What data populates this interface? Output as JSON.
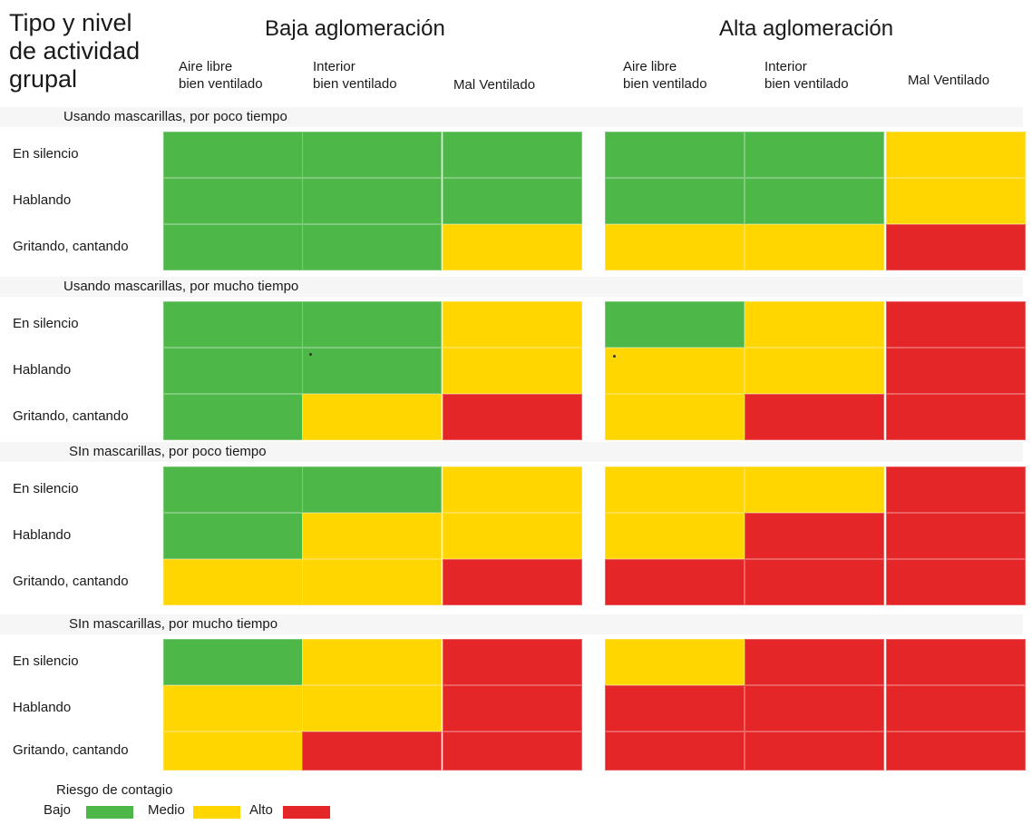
{
  "header": {
    "title": "Tipo y nivel\nde actividad\ngrupal",
    "groups": [
      "Baja aglomeración",
      "Alta aglomeración"
    ],
    "columns": [
      "Aire libre\nbien ventilado",
      "Interior\nbien ventilado",
      "Mal Ventilado",
      "Aire libre\nbien ventilado",
      "Interior\nbien ventilado",
      "Mal Ventilado"
    ]
  },
  "legend": {
    "title": "Riesgo de contagio",
    "items": [
      {
        "label": "Bajo",
        "color": "#4db848"
      },
      {
        "label": "Medio",
        "color": "#ffd600"
      },
      {
        "label": "Alto",
        "color": "#e52628"
      }
    ]
  },
  "chart_data": {
    "type": "heatmap",
    "title": "",
    "column_groups": [
      {
        "name": "Baja aglomeración",
        "columns": [
          "Aire libre\nbien ventilado",
          "Interior\nbien ventilado",
          "Mal Ventilado"
        ]
      },
      {
        "name": "Alta aglomeración",
        "columns": [
          "Aire libre\nbien ventilado",
          "Interior\nbien ventilado",
          "Mal Ventilado"
        ]
      }
    ],
    "levels": [
      "Bajo",
      "Medio",
      "Alto"
    ],
    "sections": [
      {
        "label": "Usando mascarillas, por poco tiempo",
        "rows": [
          {
            "label": "En silencio",
            "values": [
              "Bajo",
              "Bajo",
              "Bajo",
              "Bajo",
              "Bajo",
              "Medio"
            ]
          },
          {
            "label": "Hablando",
            "values": [
              "Bajo",
              "Bajo",
              "Bajo",
              "Bajo",
              "Bajo",
              "Medio"
            ]
          },
          {
            "label": "Gritando, cantando",
            "values": [
              "Bajo",
              "Bajo",
              "Medio",
              "Medio",
              "Medio",
              "Alto"
            ]
          }
        ]
      },
      {
        "label": "Usando mascarillas, por mucho tiempo",
        "rows": [
          {
            "label": "En silencio",
            "values": [
              "Bajo",
              "Bajo",
              "Medio",
              "Bajo",
              "Medio",
              "Alto"
            ]
          },
          {
            "label": "Hablando",
            "values": [
              "Bajo",
              "Bajo",
              "Medio",
              "Medio",
              "Medio",
              "Alto"
            ]
          },
          {
            "label": "Gritando, cantando",
            "values": [
              "Bajo",
              "Medio",
              "Alto",
              "Medio",
              "Alto",
              "Alto"
            ]
          }
        ]
      },
      {
        "label": "SIn mascarillas, por poco tiempo",
        "rows": [
          {
            "label": "En silencio",
            "values": [
              "Bajo",
              "Bajo",
              "Medio",
              "Medio",
              "Medio",
              "Alto"
            ]
          },
          {
            "label": "Hablando",
            "values": [
              "Bajo",
              "Medio",
              "Medio",
              "Medio",
              "Alto",
              "Alto"
            ]
          },
          {
            "label": "Gritando, cantando",
            "values": [
              "Medio",
              "Medio",
              "Alto",
              "Alto",
              "Alto",
              "Alto"
            ]
          }
        ]
      },
      {
        "label": "SIn mascarillas, por mucho tiempo",
        "rows": [
          {
            "label": "En silencio",
            "values": [
              "Bajo",
              "Medio",
              "Alto",
              "Medio",
              "Alto",
              "Alto"
            ]
          },
          {
            "label": "Hablando",
            "values": [
              "Medio",
              "Medio",
              "Alto",
              "Alto",
              "Alto",
              "Alto"
            ]
          },
          {
            "label": "Gritando, cantando",
            "values": [
              "Medio",
              "Alto",
              "Alto",
              "Alto",
              "Alto",
              "Alto"
            ]
          }
        ]
      }
    ]
  }
}
